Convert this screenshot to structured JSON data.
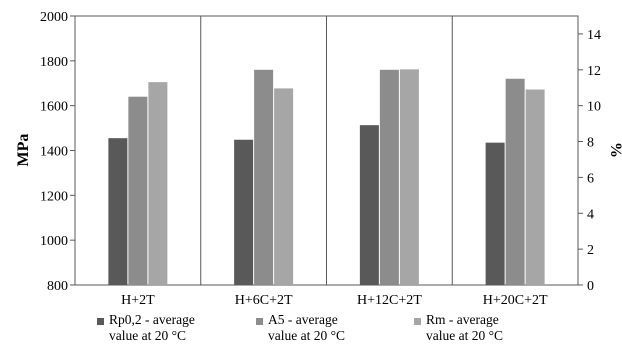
{
  "chart_data": {
    "type": "bar",
    "categories": [
      "H+2T",
      "H+6C+2T",
      "H+12C+2T",
      "H+20C+2T"
    ],
    "left_axis": {
      "label": "MPa",
      "ylim": [
        800,
        2000
      ],
      "ticks": [
        "800",
        "1000",
        "1200",
        "1400",
        "1600",
        "1800",
        "2000"
      ]
    },
    "right_axis": {
      "label": "%",
      "ylim": [
        0,
        15
      ],
      "ticks": [
        "0",
        "2",
        "4",
        "6",
        "8",
        "10",
        "12",
        "14"
      ]
    },
    "series": [
      {
        "name": "Rp0,2 - average\nvalue at 20 °C",
        "axis": "left",
        "color": "#595959",
        "values": [
          1455,
          1448,
          1513,
          1435
        ]
      },
      {
        "name": "A5 - average\nvalue at 20 °C",
        "axis": "right",
        "color": "#8c8c8c",
        "values": [
          10.5,
          12.0,
          12.0,
          11.5
        ]
      },
      {
        "name": "Rm - average\nvalue at 20 °C",
        "axis": "left",
        "color": "#a6a6a6",
        "values": [
          1705,
          1677,
          1762,
          1672
        ]
      }
    ],
    "grid": "vertical category separators",
    "legend_position": "bottom"
  }
}
